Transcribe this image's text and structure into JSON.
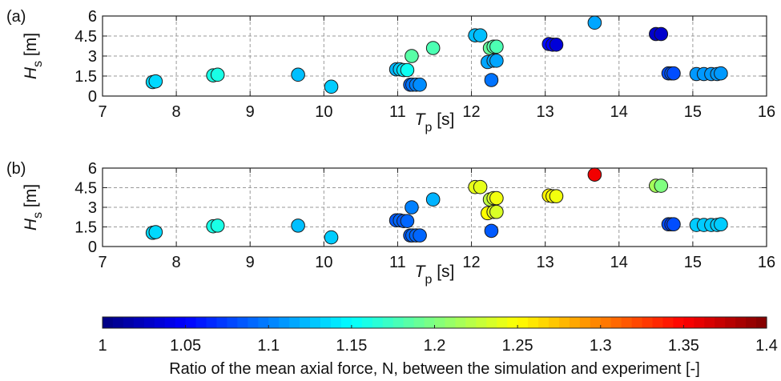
{
  "chart_data": [
    {
      "type": "scatter",
      "panel_label": "(a)",
      "xlabel_main": "T",
      "xlabel_sub": "p",
      "xlabel_unit": " [s]",
      "ylabel_main": "H",
      "ylabel_sub": "s",
      "ylabel_unit": " [m]",
      "xlim": [
        7,
        16
      ],
      "ylim": [
        0,
        6
      ],
      "xticks": [
        "7",
        "8",
        "9",
        "10",
        "11",
        "12",
        "13",
        "14",
        "15",
        "16"
      ],
      "yticks": [
        "0",
        "1.5",
        "3",
        "4.5",
        "6"
      ],
      "grid": "dashed",
      "colormap": "jet",
      "points": [
        {
          "x": 7.68,
          "y": 1.05,
          "c": 1.135
        },
        {
          "x": 7.72,
          "y": 1.1,
          "c": 1.135
        },
        {
          "x": 8.5,
          "y": 1.55,
          "c": 1.16
        },
        {
          "x": 8.56,
          "y": 1.6,
          "c": 1.16
        },
        {
          "x": 9.65,
          "y": 1.6,
          "c": 1.125
        },
        {
          "x": 10.1,
          "y": 0.7,
          "c": 1.13
        },
        {
          "x": 10.98,
          "y": 2.0,
          "c": 1.12
        },
        {
          "x": 11.03,
          "y": 2.0,
          "c": 1.13
        },
        {
          "x": 11.08,
          "y": 1.95,
          "c": 1.14
        },
        {
          "x": 11.13,
          "y": 1.95,
          "c": 1.155
        },
        {
          "x": 11.17,
          "y": 0.85,
          "c": 1.09
        },
        {
          "x": 11.2,
          "y": 0.85,
          "c": 1.095
        },
        {
          "x": 11.25,
          "y": 0.85,
          "c": 1.1
        },
        {
          "x": 11.3,
          "y": 0.85,
          "c": 1.105
        },
        {
          "x": 11.19,
          "y": 3.0,
          "c": 1.185
        },
        {
          "x": 11.48,
          "y": 3.6,
          "c": 1.18
        },
        {
          "x": 12.05,
          "y": 4.55,
          "c": 1.125
        },
        {
          "x": 12.12,
          "y": 4.55,
          "c": 1.125
        },
        {
          "x": 12.25,
          "y": 3.6,
          "c": 1.19
        },
        {
          "x": 12.3,
          "y": 3.7,
          "c": 1.185
        },
        {
          "x": 12.34,
          "y": 3.7,
          "c": 1.18
        },
        {
          "x": 12.22,
          "y": 2.55,
          "c": 1.115
        },
        {
          "x": 12.3,
          "y": 2.65,
          "c": 1.115
        },
        {
          "x": 12.34,
          "y": 2.65,
          "c": 1.115
        },
        {
          "x": 12.27,
          "y": 1.2,
          "c": 1.095
        },
        {
          "x": 13.05,
          "y": 3.9,
          "c": 1.055
        },
        {
          "x": 13.1,
          "y": 3.85,
          "c": 1.05
        },
        {
          "x": 13.15,
          "y": 3.85,
          "c": 1.035
        },
        {
          "x": 13.67,
          "y": 5.5,
          "c": 1.115
        },
        {
          "x": 14.5,
          "y": 4.65,
          "c": 1.03
        },
        {
          "x": 14.57,
          "y": 4.65,
          "c": 1.03
        },
        {
          "x": 14.67,
          "y": 1.7,
          "c": 1.08
        },
        {
          "x": 14.71,
          "y": 1.7,
          "c": 1.085
        },
        {
          "x": 14.74,
          "y": 1.7,
          "c": 1.08
        },
        {
          "x": 15.05,
          "y": 1.65,
          "c": 1.11
        },
        {
          "x": 15.15,
          "y": 1.65,
          "c": 1.11
        },
        {
          "x": 15.25,
          "y": 1.65,
          "c": 1.11
        },
        {
          "x": 15.33,
          "y": 1.65,
          "c": 1.11
        },
        {
          "x": 15.38,
          "y": 1.7,
          "c": 1.11
        }
      ]
    },
    {
      "type": "scatter",
      "panel_label": "(b)",
      "xlabel_main": "T",
      "xlabel_sub": "p",
      "xlabel_unit": " [s]",
      "ylabel_main": "H",
      "ylabel_sub": "s",
      "ylabel_unit": " [m]",
      "xlim": [
        7,
        16
      ],
      "ylim": [
        0,
        6
      ],
      "xticks": [
        "7",
        "8",
        "9",
        "10",
        "11",
        "12",
        "13",
        "14",
        "15",
        "16"
      ],
      "yticks": [
        "0",
        "1.5",
        "3",
        "4.5",
        "6"
      ],
      "grid": "dashed",
      "colormap": "jet",
      "points": [
        {
          "x": 7.68,
          "y": 1.05,
          "c": 1.135
        },
        {
          "x": 7.72,
          "y": 1.1,
          "c": 1.135
        },
        {
          "x": 8.5,
          "y": 1.55,
          "c": 1.16
        },
        {
          "x": 8.56,
          "y": 1.6,
          "c": 1.16
        },
        {
          "x": 9.65,
          "y": 1.6,
          "c": 1.125
        },
        {
          "x": 10.1,
          "y": 0.7,
          "c": 1.13
        },
        {
          "x": 10.98,
          "y": 2.0,
          "c": 1.085
        },
        {
          "x": 11.03,
          "y": 2.0,
          "c": 1.09
        },
        {
          "x": 11.08,
          "y": 1.95,
          "c": 1.085
        },
        {
          "x": 11.13,
          "y": 1.95,
          "c": 1.09
        },
        {
          "x": 11.17,
          "y": 0.85,
          "c": 1.085
        },
        {
          "x": 11.2,
          "y": 0.85,
          "c": 1.09
        },
        {
          "x": 11.25,
          "y": 0.85,
          "c": 1.09
        },
        {
          "x": 11.3,
          "y": 0.85,
          "c": 1.09
        },
        {
          "x": 11.19,
          "y": 3.0,
          "c": 1.1
        },
        {
          "x": 11.48,
          "y": 3.6,
          "c": 1.12
        },
        {
          "x": 12.05,
          "y": 4.55,
          "c": 1.24
        },
        {
          "x": 12.12,
          "y": 4.55,
          "c": 1.24
        },
        {
          "x": 12.25,
          "y": 3.6,
          "c": 1.225
        },
        {
          "x": 12.3,
          "y": 3.7,
          "c": 1.235
        },
        {
          "x": 12.34,
          "y": 3.7,
          "c": 1.245
        },
        {
          "x": 12.22,
          "y": 2.55,
          "c": 1.25
        },
        {
          "x": 12.3,
          "y": 2.65,
          "c": 1.24
        },
        {
          "x": 12.34,
          "y": 2.65,
          "c": 1.235
        },
        {
          "x": 12.27,
          "y": 1.2,
          "c": 1.085
        },
        {
          "x": 13.05,
          "y": 3.9,
          "c": 1.255
        },
        {
          "x": 13.1,
          "y": 3.85,
          "c": 1.25
        },
        {
          "x": 13.15,
          "y": 3.85,
          "c": 1.245
        },
        {
          "x": 13.67,
          "y": 5.5,
          "c": 1.355
        },
        {
          "x": 14.5,
          "y": 4.65,
          "c": 1.215
        },
        {
          "x": 14.57,
          "y": 4.65,
          "c": 1.2
        },
        {
          "x": 14.67,
          "y": 1.7,
          "c": 1.08
        },
        {
          "x": 14.71,
          "y": 1.7,
          "c": 1.075
        },
        {
          "x": 14.74,
          "y": 1.7,
          "c": 1.08
        },
        {
          "x": 15.05,
          "y": 1.65,
          "c": 1.13
        },
        {
          "x": 15.15,
          "y": 1.65,
          "c": 1.13
        },
        {
          "x": 15.25,
          "y": 1.65,
          "c": 1.13
        },
        {
          "x": 15.33,
          "y": 1.65,
          "c": 1.13
        },
        {
          "x": 15.38,
          "y": 1.7,
          "c": 1.13
        }
      ]
    }
  ],
  "colorbar": {
    "range": [
      1,
      1.4
    ],
    "ticks": [
      "1",
      "1.05",
      "1.1",
      "1.15",
      "1.2",
      "1.25",
      "1.3",
      "1.35",
      "1.4"
    ],
    "label": "Ratio of the mean axial force, N, between the simulation and experiment [-]"
  }
}
